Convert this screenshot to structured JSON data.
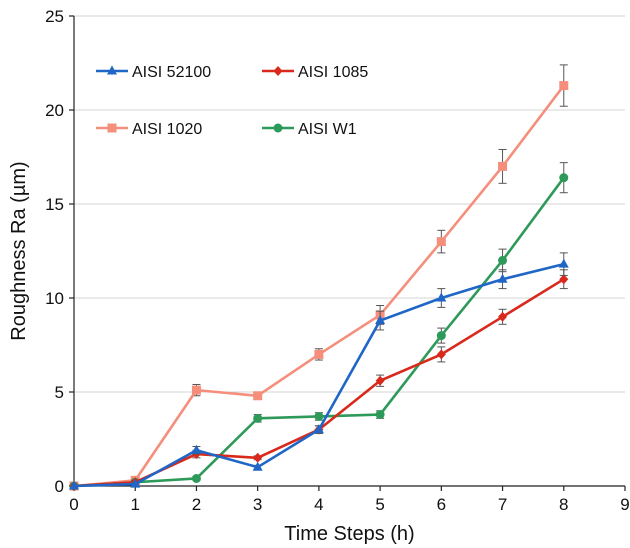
{
  "chart_data": {
    "type": "line",
    "title": "",
    "xlabel": "Time Steps (h)",
    "ylabel": "Roughness Ra (µm)",
    "xlim": [
      0,
      9
    ],
    "ylim": [
      0,
      25
    ],
    "xticks": [
      "0",
      "1",
      "2",
      "3",
      "4",
      "5",
      "6",
      "7",
      "8",
      "9"
    ],
    "yticks": [
      "0",
      "5",
      "10",
      "15",
      "20",
      "25"
    ],
    "grid": "horizontal",
    "legend_position": "top-left",
    "x": [
      0,
      1,
      2,
      3,
      4,
      5,
      6,
      7,
      8
    ],
    "series": [
      {
        "name": "AISI 52100",
        "color": "#1f66c6",
        "marker": "triangle",
        "values": [
          0,
          0.1,
          1.9,
          1.0,
          3.0,
          8.8,
          10.0,
          11.0,
          11.8
        ],
        "errors": [
          0,
          0.1,
          0.2,
          0.1,
          0.2,
          0.5,
          0.5,
          0.5,
          0.6
        ]
      },
      {
        "name": "AISI 1085",
        "color": "#d9291c",
        "marker": "diamond",
        "values": [
          0,
          0.2,
          1.7,
          1.5,
          3.0,
          5.6,
          7.0,
          9.0,
          11.0
        ],
        "errors": [
          0,
          0.1,
          0.2,
          0.1,
          0.2,
          0.3,
          0.4,
          0.4,
          0.5
        ]
      },
      {
        "name": "AISI 1020",
        "color": "#f58f7c",
        "marker": "square",
        "values": [
          0,
          0.3,
          5.1,
          4.8,
          7.0,
          9.1,
          13.0,
          17.0,
          21.3
        ],
        "errors": [
          0,
          0.1,
          0.3,
          0.2,
          0.3,
          0.5,
          0.6,
          0.9,
          1.1
        ]
      },
      {
        "name": "AISI W1",
        "color": "#2e9a5a",
        "marker": "circle",
        "values": [
          0,
          0.2,
          0.4,
          3.6,
          3.7,
          3.8,
          8.0,
          12.0,
          16.4
        ],
        "errors": [
          0,
          0.1,
          0.1,
          0.2,
          0.2,
          0.2,
          0.4,
          0.6,
          0.8
        ]
      }
    ]
  }
}
